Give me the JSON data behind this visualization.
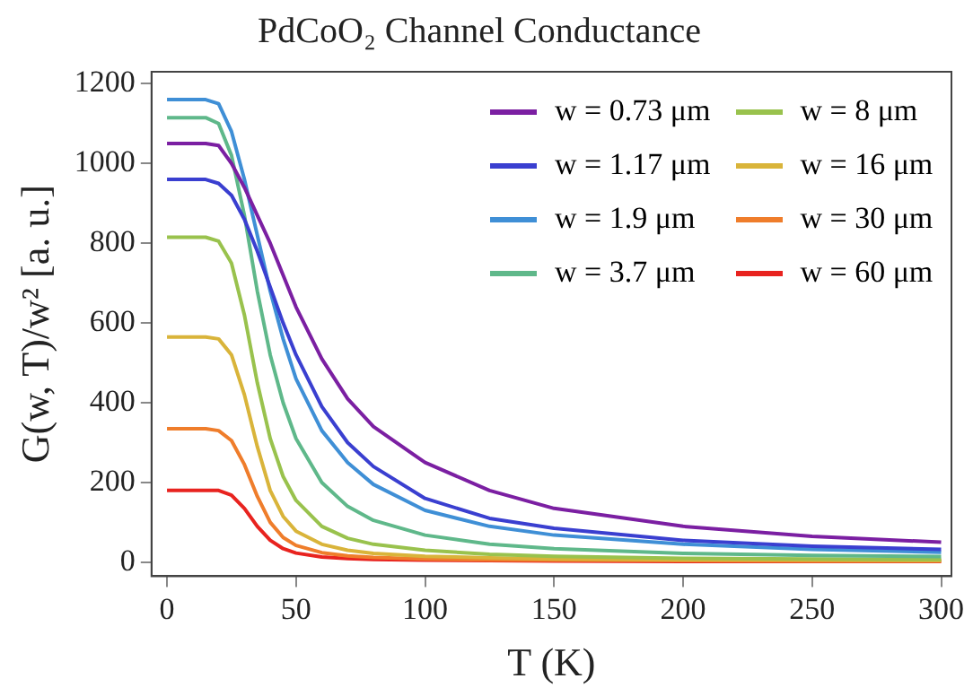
{
  "chart_data": {
    "type": "line",
    "title": "PdCoO₂ Channel Conductance",
    "xlabel": "T (K)",
    "ylabel": "G(w, T)/w² [a. u.]",
    "x": [
      0,
      5,
      10,
      15,
      20,
      25,
      30,
      35,
      40,
      45,
      50,
      60,
      70,
      80,
      100,
      125,
      150,
      200,
      250,
      300
    ],
    "series": [
      {
        "name": "w = 0.73 μm",
        "color": "#7b1fa2",
        "values": [
          1050,
          1050,
          1050,
          1050,
          1045,
          1000,
          940,
          870,
          800,
          720,
          640,
          510,
          410,
          340,
          250,
          180,
          135,
          90,
          65,
          50
        ]
      },
      {
        "name": "w = 1.17 μm",
        "color": "#3a3fd0",
        "values": [
          960,
          960,
          960,
          960,
          950,
          920,
          860,
          780,
          690,
          600,
          520,
          390,
          300,
          240,
          160,
          110,
          85,
          55,
          40,
          32
        ]
      },
      {
        "name": "w = 1.9 μm",
        "color": "#3f8fd6",
        "values": [
          1160,
          1160,
          1160,
          1160,
          1150,
          1080,
          960,
          820,
          680,
          560,
          460,
          330,
          250,
          195,
          130,
          90,
          68,
          45,
          32,
          25
        ]
      },
      {
        "name": "w = 3.7 μm",
        "color": "#5fb88a",
        "values": [
          1115,
          1115,
          1115,
          1115,
          1100,
          1020,
          870,
          680,
          520,
          400,
          310,
          200,
          140,
          105,
          68,
          45,
          34,
          22,
          17,
          14
        ]
      },
      {
        "name": "w = 8 μm",
        "color": "#99c24d",
        "values": [
          815,
          815,
          815,
          815,
          805,
          750,
          620,
          450,
          310,
          215,
          155,
          90,
          60,
          45,
          30,
          20,
          15,
          10,
          8,
          7
        ]
      },
      {
        "name": "w = 16 μm",
        "color": "#d9b43a",
        "values": [
          565,
          565,
          565,
          565,
          560,
          520,
          420,
          290,
          180,
          115,
          78,
          45,
          30,
          22,
          15,
          11,
          8,
          6,
          5,
          4
        ]
      },
      {
        "name": "w = 30 μm",
        "color": "#ef7d2b",
        "values": [
          335,
          335,
          335,
          335,
          330,
          305,
          245,
          165,
          100,
          62,
          42,
          24,
          16,
          12,
          8,
          6,
          5,
          4,
          3,
          3
        ]
      },
      {
        "name": "w = 60 μm",
        "color": "#e8231f",
        "values": [
          180,
          180,
          180,
          180,
          180,
          168,
          135,
          90,
          55,
          34,
          23,
          13,
          9,
          7,
          5,
          4,
          3,
          2,
          2,
          2
        ]
      }
    ],
    "xlim": [
      -6,
      304
    ],
    "xticks": [
      0,
      50,
      100,
      150,
      200,
      250,
      300
    ],
    "ylim": [
      -35,
      1230
    ],
    "yticks": [
      0,
      200,
      400,
      600,
      800,
      1000,
      1200
    ],
    "grid": false,
    "legend": "top right",
    "marker": "none",
    "line_style": "solid"
  }
}
